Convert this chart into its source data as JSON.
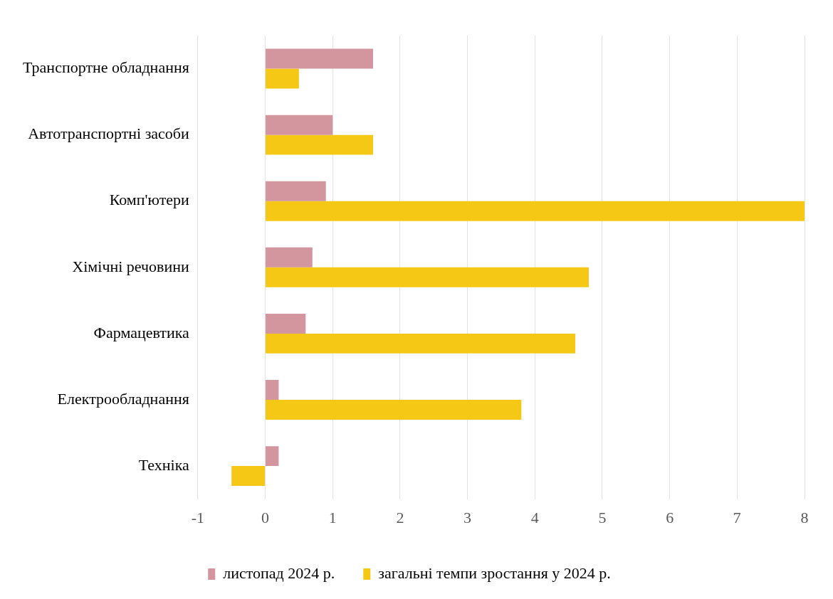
{
  "chart_data": {
    "type": "bar",
    "orientation": "horizontal",
    "categories": [
      "Транспортне обладнання",
      "Автотранспортні засоби",
      "Комп'ютери",
      "Хімічні речовини",
      "Фармацевтика",
      "Електрообладнання",
      "Техніка"
    ],
    "series": [
      {
        "name": "листопад 2024 р.",
        "color": "#d4969e",
        "values": [
          1.6,
          1.0,
          0.9,
          0.7,
          0.6,
          0.2,
          0.2
        ]
      },
      {
        "name": "загальні темпи зростання у 2024 р.",
        "color": "#f5c816",
        "values": [
          0.5,
          1.6,
          8.0,
          4.8,
          4.6,
          3.8,
          -0.5
        ]
      }
    ],
    "xlim": [
      -1,
      8
    ],
    "xticks": [
      -1,
      0,
      1,
      2,
      3,
      4,
      5,
      6,
      7,
      8
    ],
    "grid": "x",
    "legend": "bottom"
  }
}
